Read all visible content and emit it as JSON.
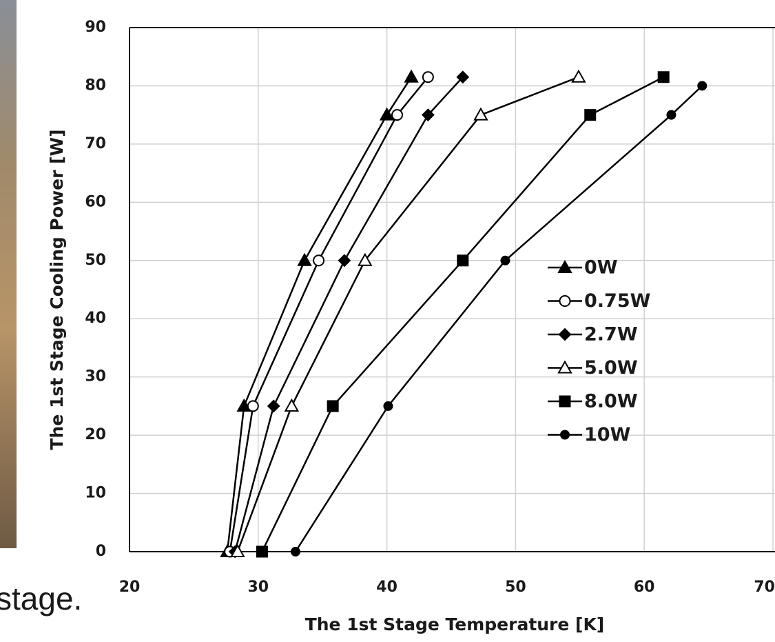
{
  "caption": "stage.",
  "chart_data": {
    "type": "line",
    "xlabel": "The 1st Stage Temperature [K]",
    "ylabel": "The 1st Stage Cooling Power [W]",
    "xlim": [
      20,
      70
    ],
    "xticks": [
      20,
      30,
      40,
      50,
      60,
      70
    ],
    "ylim": [
      0,
      90
    ],
    "yticks": [
      0,
      10,
      20,
      30,
      40,
      50,
      60,
      70,
      80,
      90
    ],
    "grid": true,
    "series": [
      {
        "name": "0W",
        "color": "#000000",
        "marker": "triangle",
        "filled": true,
        "x": [
          27.6,
          28.9,
          33.6,
          40.0,
          41.9
        ],
        "values": [
          0,
          25,
          50,
          75,
          81.5
        ]
      },
      {
        "name": "0.75W",
        "color": "#000000",
        "marker": "circle",
        "filled": false,
        "x": [
          27.8,
          29.6,
          34.7,
          40.8,
          43.2
        ],
        "values": [
          0,
          25,
          50,
          75,
          81.5
        ]
      },
      {
        "name": "2.7W",
        "color": "#000000",
        "marker": "diamond",
        "filled": true,
        "x": [
          28.2,
          31.2,
          36.7,
          43.2,
          45.9
        ],
        "values": [
          0,
          25,
          50,
          75,
          81.5
        ]
      },
      {
        "name": "5.0W",
        "color": "#000000",
        "marker": "triangle",
        "filled": false,
        "x": [
          28.4,
          32.6,
          38.3,
          47.3,
          54.9
        ],
        "values": [
          0,
          25,
          50,
          75,
          81.5
        ]
      },
      {
        "name": "8.0W",
        "color": "#000000",
        "marker": "square",
        "filled": true,
        "x": [
          30.3,
          35.8,
          45.9,
          55.8,
          61.5
        ],
        "values": [
          0,
          25,
          50,
          75,
          81.5
        ]
      },
      {
        "name": "10W",
        "color": "#000000",
        "marker": "dot",
        "filled": true,
        "x": [
          32.9,
          40.1,
          49.2,
          62.1,
          64.5
        ],
        "values": [
          0,
          25,
          50,
          75,
          80
        ]
      }
    ]
  }
}
